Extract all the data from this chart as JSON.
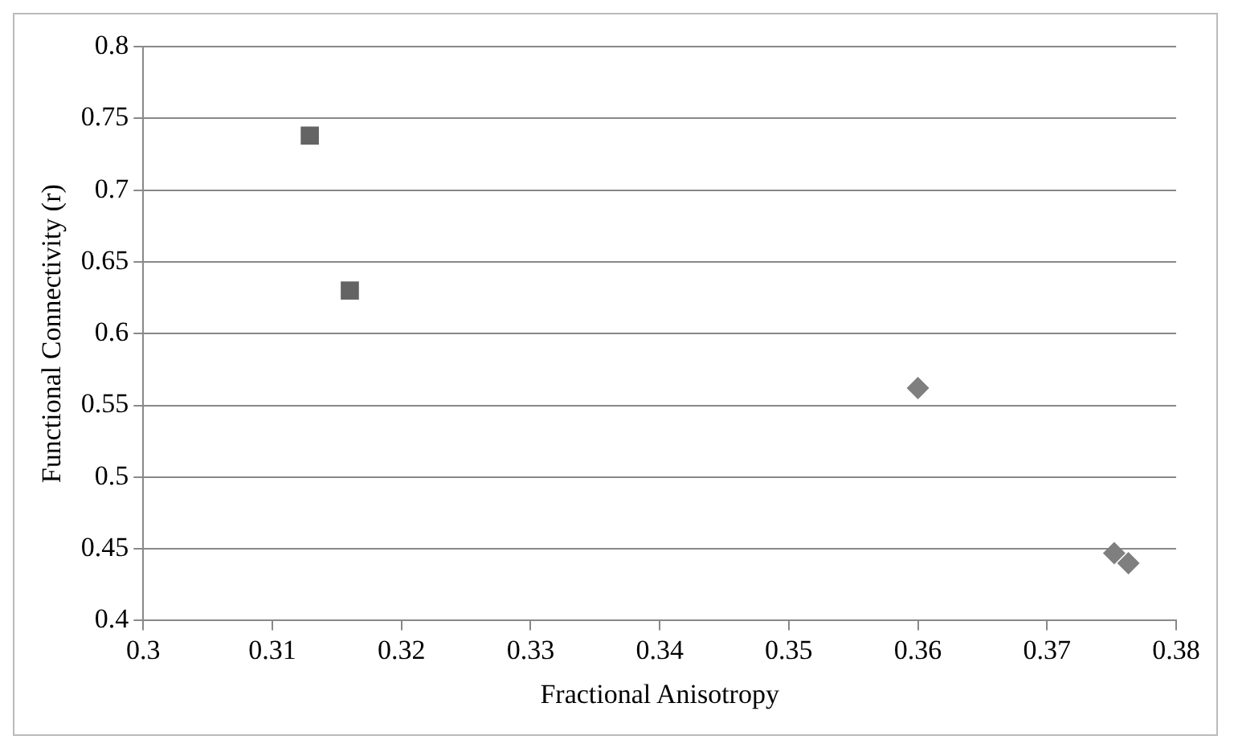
{
  "chart_data": {
    "type": "scatter",
    "xlabel": "Fractional Anisotropy",
    "ylabel": "Functional Connectivity (r)",
    "xlim": [
      0.3,
      0.38
    ],
    "xticks": [
      0.3,
      0.31,
      0.32,
      0.33,
      0.34,
      0.35,
      0.36,
      0.37,
      0.38
    ],
    "ylim": [
      0.4,
      0.8
    ],
    "yticks": [
      0.4,
      0.45,
      0.5,
      0.55,
      0.6,
      0.65,
      0.7,
      0.75,
      0.8
    ],
    "grid": "y",
    "legend": false,
    "series": [
      {
        "color": "#646464",
        "marker": "square",
        "x": [
          0.3129,
          0.316
        ],
        "values": [
          0.738,
          0.63
        ]
      },
      {
        "color": "#7f7f7f",
        "marker": "diamond",
        "x": [
          0.36,
          0.3752,
          0.3763
        ],
        "values": [
          0.562,
          0.447,
          0.44
        ]
      }
    ]
  }
}
